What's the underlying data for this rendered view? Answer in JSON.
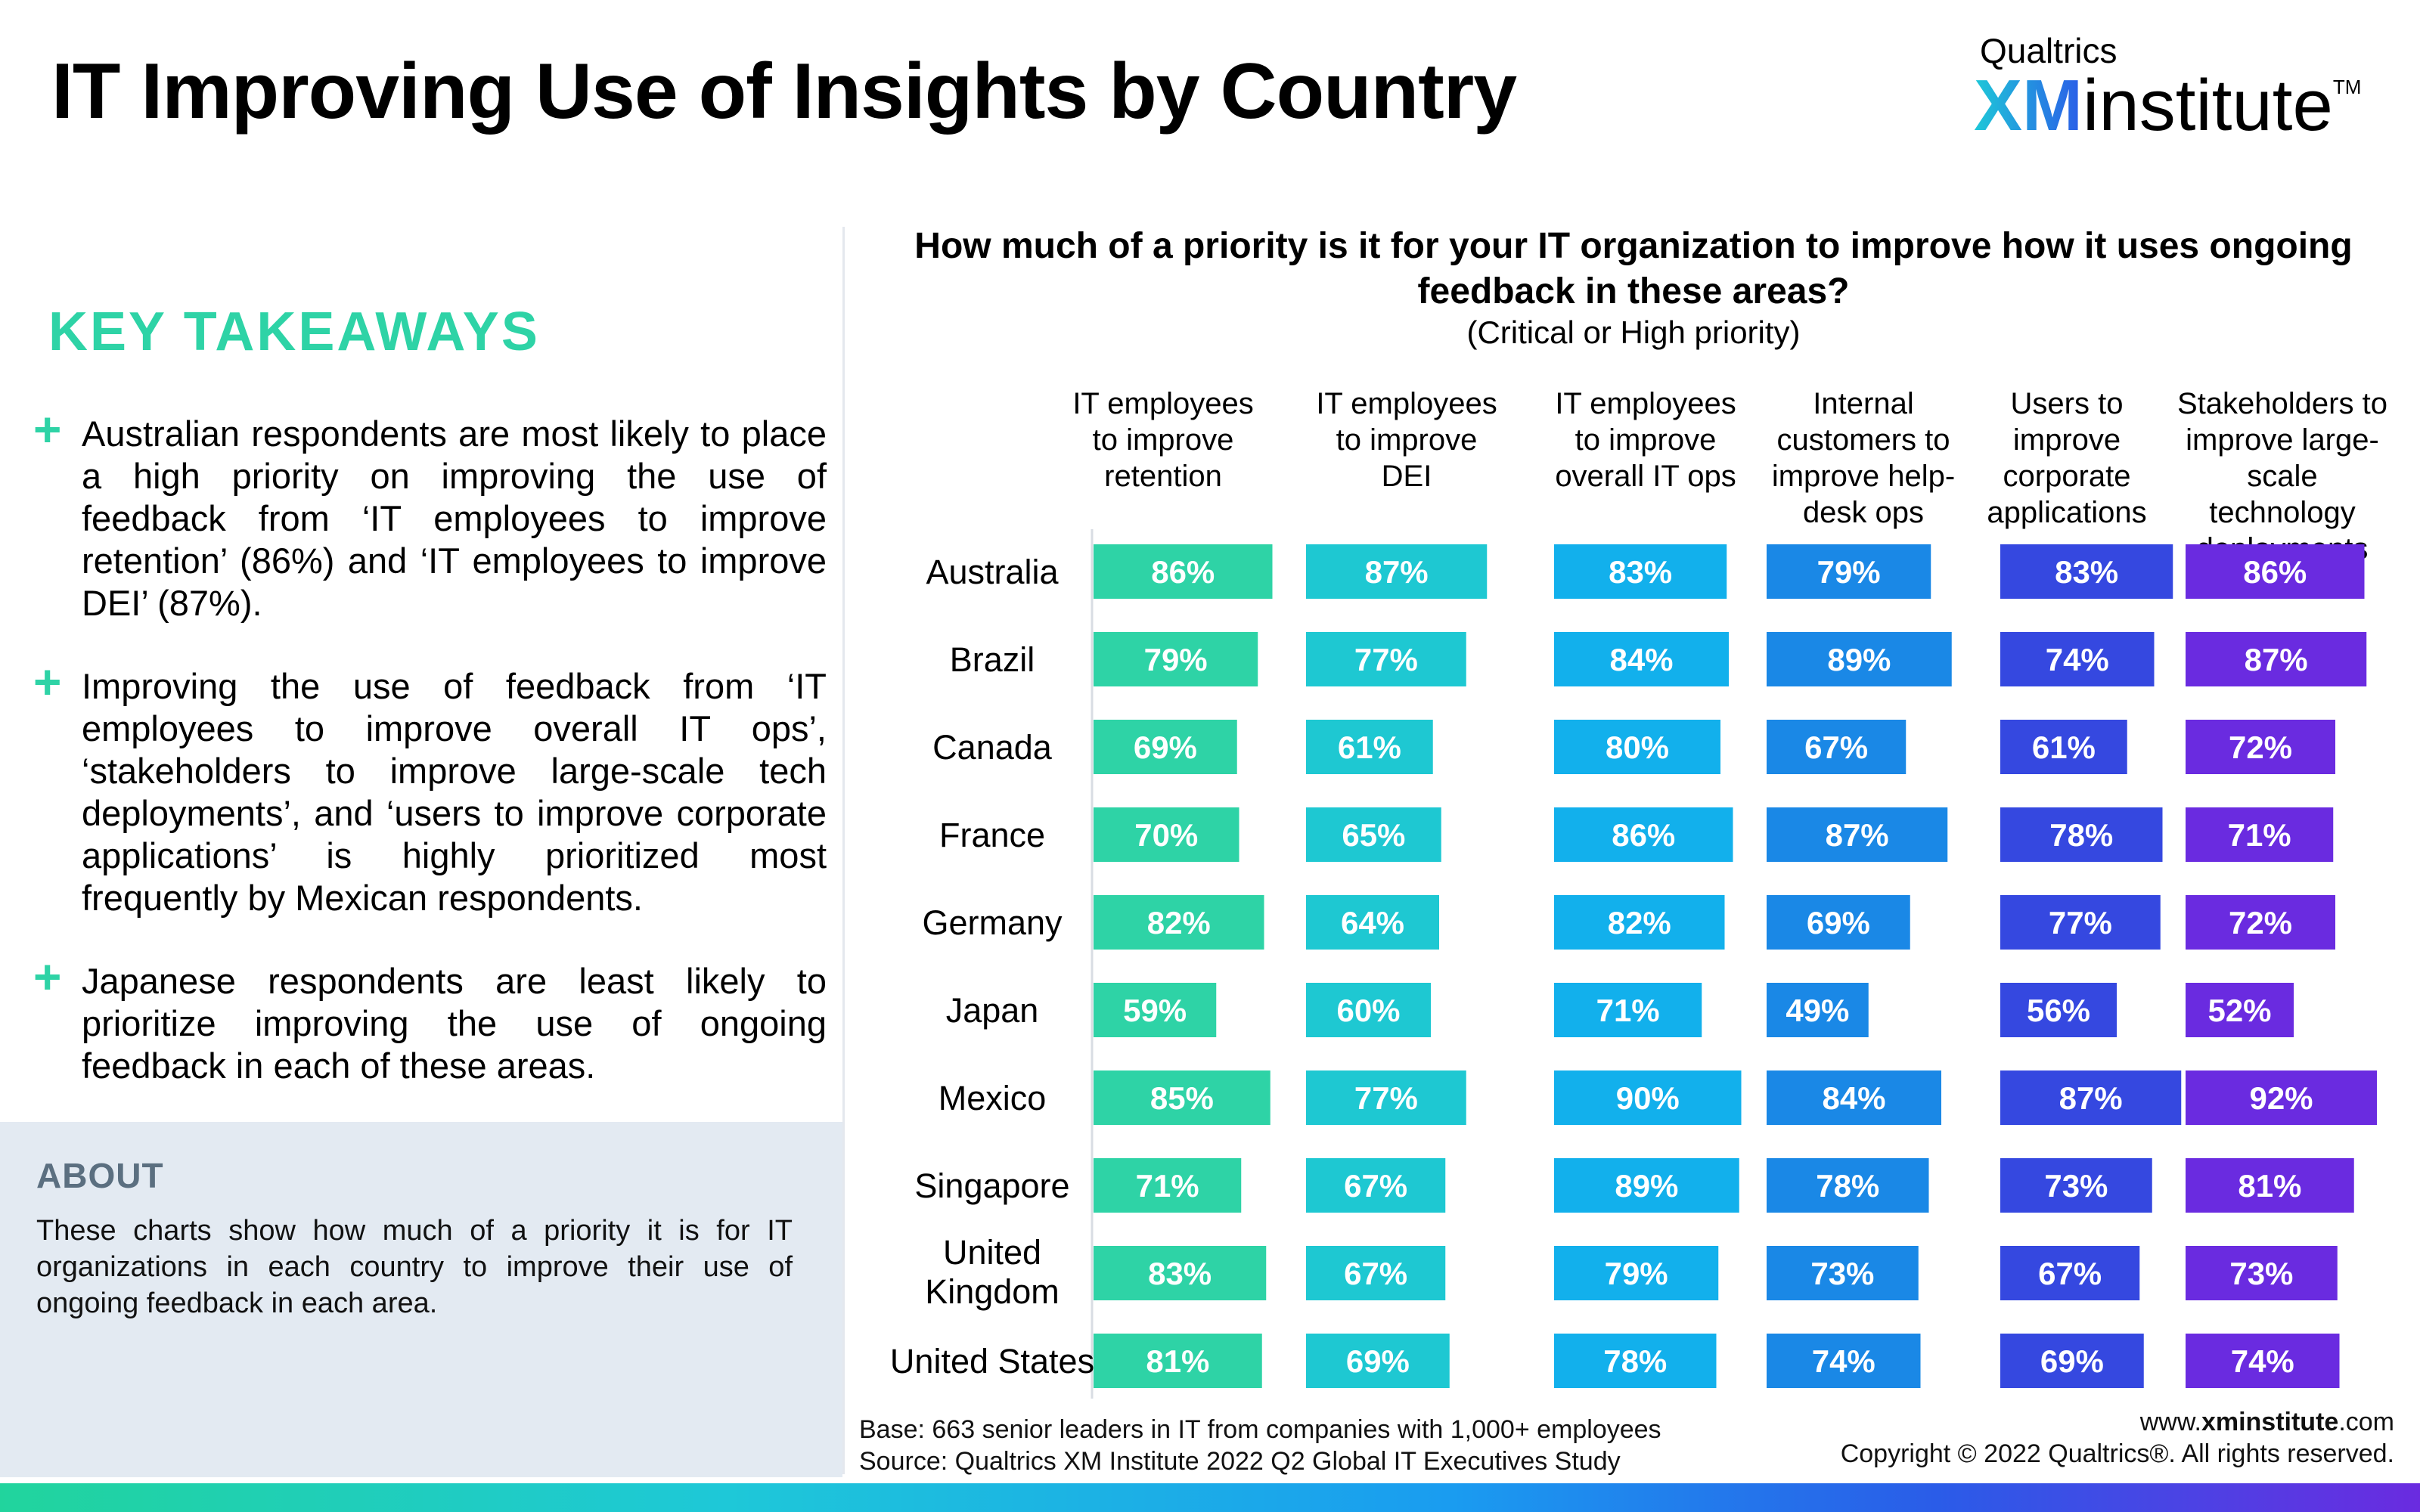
{
  "title": "IT Improving Use of Insights by Country",
  "brand": {
    "line1": "Qualtrics",
    "xm": "XM",
    "institute": "institute",
    "tm": "TM"
  },
  "key_takeaways": {
    "heading": "KEY TAKEAWAYS",
    "items": [
      "Australian respondents are most likely to place a high priority on improving the use of feedback from ‘IT employees to improve retention’ (86%) and ‘IT employees to improve DEI’ (87%).",
      "Improving the use of feedback from ‘IT employees to improve overall IT ops’, ‘stakeholders to improve large-scale tech deployments’, and ‘users to improve corporate applications’ is highly prioritized most frequently by Mexican respondents.",
      "Japanese respondents are least likely to prioritize improving the use of ongoing feedback in each of these areas."
    ]
  },
  "about": {
    "heading": "ABOUT",
    "text": "These charts show how much of a priority it is for IT organizations in each country to improve their use of ongoing feedback in each area."
  },
  "chart_data": {
    "type": "bar",
    "title": "How much of a priority is it for your IT organization to improve how it uses ongoing feedback in these areas?",
    "subtitle": "(Critical or High priority)",
    "categories": [
      "Australia",
      "Brazil",
      "Canada",
      "France",
      "Germany",
      "Japan",
      "Mexico",
      "Singapore",
      "United Kingdom",
      "United States"
    ],
    "value_suffix": "%",
    "series": [
      {
        "name": "IT employees to improve retention",
        "color": "#2ed3a6",
        "values": [
          86,
          79,
          69,
          70,
          82,
          59,
          85,
          71,
          83,
          81
        ]
      },
      {
        "name": "IT employees to improve DEI",
        "color": "#1ec8d2",
        "values": [
          87,
          77,
          61,
          65,
          64,
          60,
          77,
          67,
          67,
          69
        ]
      },
      {
        "name": "IT employees to improve overall IT ops",
        "color": "#12b0ec",
        "values": [
          83,
          84,
          80,
          86,
          82,
          71,
          90,
          89,
          79,
          78
        ]
      },
      {
        "name": "Internal customers to improve help-desk ops",
        "color": "#1a88e6",
        "values": [
          79,
          89,
          67,
          87,
          69,
          49,
          84,
          78,
          73,
          74
        ]
      },
      {
        "name": "Users to improve corporate applications",
        "color": "#3548e0",
        "values": [
          83,
          74,
          61,
          78,
          77,
          56,
          87,
          73,
          67,
          69
        ]
      },
      {
        "name": "Stakeholders to improve large-scale technology deployments",
        "color": "#6a2be0",
        "values": [
          86,
          87,
          72,
          71,
          72,
          52,
          92,
          81,
          73,
          74
        ]
      }
    ],
    "column_headers": [
      [
        "IT employees",
        "to improve",
        "retention"
      ],
      [
        "IT employees",
        "to improve",
        "DEI"
      ],
      [
        "IT employees",
        "to improve",
        "overall IT ops"
      ],
      [
        "Internal",
        "customers to",
        "improve help-",
        "desk ops"
      ],
      [
        "Users to",
        "improve",
        "corporate",
        "applications"
      ],
      [
        "Stakeholders to",
        "improve large-",
        "scale technology",
        "deployments"
      ]
    ],
    "row_labels": [
      [
        "Australia"
      ],
      [
        "Brazil"
      ],
      [
        "Canada"
      ],
      [
        "France"
      ],
      [
        "Germany"
      ],
      [
        "Japan"
      ],
      [
        "Mexico"
      ],
      [
        "Singapore"
      ],
      [
        "United",
        "Kingdom"
      ],
      [
        "United States"
      ]
    ]
  },
  "footer": {
    "base": "Base: 663 senior leaders in IT from companies with 1,000+ employees",
    "source": "Source: Qualtrics XM Institute 2022 Q2 Global IT Executives Study",
    "url_prefix": "www.",
    "url_bold": "xminstitute",
    "url_suffix": ".com",
    "copyright": "Copyright © 2022 Qualtrics®. All rights reserved."
  }
}
